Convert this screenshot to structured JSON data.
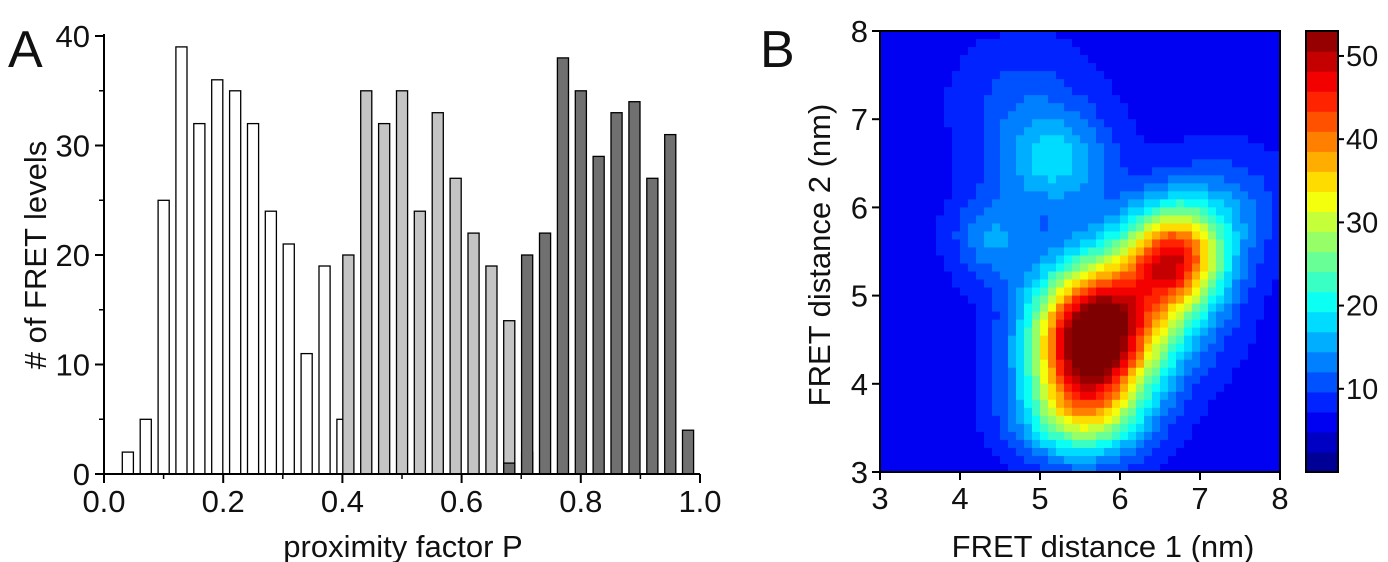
{
  "chart_data": [
    {
      "panel": "A",
      "type": "bar",
      "xlabel": "proximity factor P",
      "ylabel": "# of FRET levels",
      "xlim": [
        0,
        1
      ],
      "ylim": [
        0,
        40
      ],
      "xticks": [
        "0.0",
        "0.2",
        "0.4",
        "0.6",
        "0.8",
        "1.0"
      ],
      "yticks": [
        "0",
        "10",
        "20",
        "30",
        "40"
      ],
      "bin_width": 0.03,
      "series": [
        {
          "fill": "#ffffff",
          "x": [
            0.04,
            0.07,
            0.1,
            0.13,
            0.16,
            0.19,
            0.22,
            0.25,
            0.28,
            0.31,
            0.34,
            0.37,
            0.4
          ],
          "values": [
            2,
            5,
            25,
            39,
            32,
            36,
            35,
            32,
            24,
            21,
            11,
            19,
            5
          ]
        },
        {
          "fill": "#c4c4c4",
          "x": [
            0.41,
            0.44,
            0.47,
            0.5,
            0.53,
            0.56,
            0.59,
            0.62,
            0.65,
            0.68,
            0.71
          ],
          "values": [
            20,
            35,
            32,
            35,
            24,
            33,
            27,
            22,
            19,
            14,
            2
          ]
        },
        {
          "fill": "#707070",
          "x": [
            0.68,
            0.71,
            0.74,
            0.77,
            0.8,
            0.83,
            0.86,
            0.89,
            0.92,
            0.95,
            0.98
          ],
          "values": [
            1,
            20,
            22,
            38,
            35,
            29,
            33,
            34,
            27,
            31,
            4
          ]
        }
      ]
    },
    {
      "panel": "B",
      "type": "heatmap",
      "xlabel": "FRET distance 1 (nm)",
      "ylabel": "FRET distance 2 (nm)",
      "xlim": [
        3,
        8
      ],
      "ylim": [
        3,
        8
      ],
      "xticks": [
        "3",
        "4",
        "5",
        "6",
        "7",
        "8"
      ],
      "yticks": [
        "3",
        "4",
        "5",
        "6",
        "7",
        "8"
      ],
      "colorbar": {
        "min": 0,
        "max": 53,
        "ticks": [
          "10",
          "20",
          "30",
          "40",
          "50"
        ]
      },
      "peaks": [
        {
          "x": 5.6,
          "y": 4.4,
          "value": 53,
          "sx": 0.5,
          "sy": 0.55
        },
        {
          "x": 6.7,
          "y": 5.45,
          "value": 42,
          "sx": 0.42,
          "sy": 0.4
        },
        {
          "x": 6.1,
          "y": 4.85,
          "value": 31,
          "sx": 0.65,
          "sy": 0.55
        },
        {
          "x": 5.2,
          "y": 6.5,
          "value": 18,
          "sx": 0.5,
          "sy": 0.4
        },
        {
          "x": 4.4,
          "y": 5.65,
          "value": 15,
          "sx": 0.35,
          "sy": 0.35
        },
        {
          "x": 4.8,
          "y": 7.2,
          "value": 11,
          "sx": 0.6,
          "sy": 0.5
        },
        {
          "x": 5.5,
          "y": 3.6,
          "value": 22,
          "sx": 0.55,
          "sy": 0.35
        },
        {
          "x": 7.3,
          "y": 6.0,
          "value": 13,
          "sx": 0.55,
          "sy": 0.45
        }
      ],
      "baseline": 6
    }
  ],
  "panel_labels": {
    "a": "A",
    "b": "B"
  },
  "colors": {
    "jet": [
      "#00007f",
      "#0000ff",
      "#007fff",
      "#00ffff",
      "#7fff7f",
      "#ffff00",
      "#ff7f00",
      "#ff0000",
      "#7f0000"
    ],
    "axis": "#000000"
  }
}
